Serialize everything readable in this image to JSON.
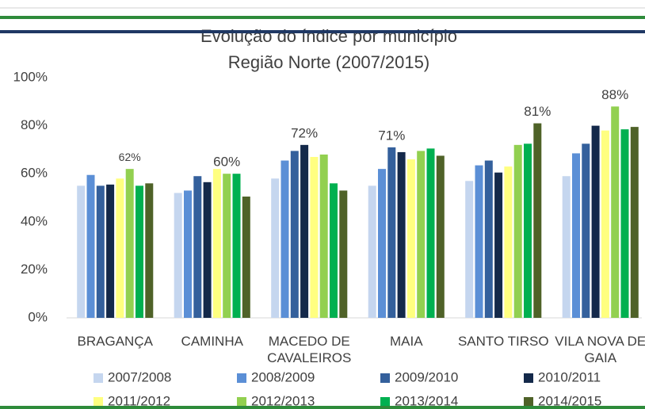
{
  "chart_data": {
    "type": "bar",
    "title": "Evolução do índice por município",
    "subtitle": "Região Norte (2007/2015)",
    "categories": [
      "BRAGANÇA",
      "CAMINHA",
      "MACEDO DE CAVALEIROS",
      "MAIA",
      "SANTO TIRSO",
      "VILA NOVA DE GAIA"
    ],
    "series": [
      {
        "name": "2007/2008",
        "color": "#c5d6ef",
        "values": [
          55,
          52,
          58,
          55,
          57,
          59
        ]
      },
      {
        "name": "2008/2009",
        "color": "#5b8fd6",
        "values": [
          59.5,
          53,
          65.5,
          62,
          63.5,
          68.5
        ]
      },
      {
        "name": "2009/2010",
        "color": "#34609c",
        "values": [
          55,
          59,
          69.5,
          71,
          65.5,
          72.5
        ],
        "value_labels": [
          null,
          null,
          null,
          "71%",
          null,
          null
        ]
      },
      {
        "name": "2010/2011",
        "color": "#14294a",
        "values": [
          55.5,
          56.5,
          72,
          69,
          60.5,
          80
        ],
        "value_labels": [
          null,
          null,
          "72%",
          null,
          null,
          null
        ]
      },
      {
        "name": "2011/2012",
        "color": "#ffff80",
        "values": [
          58,
          62,
          67,
          66,
          63,
          78
        ]
      },
      {
        "name": "2012/2013",
        "color": "#92d050",
        "values": [
          62,
          60,
          68,
          69.5,
          72,
          88
        ],
        "value_labels": [
          "62%",
          "60%",
          null,
          null,
          null,
          "88%"
        ]
      },
      {
        "name": "2013/2014",
        "color": "#00b050",
        "values": [
          55,
          60,
          56,
          70.5,
          72.5,
          78.5
        ]
      },
      {
        "name": "2014/2015",
        "color": "#4f6228",
        "values": [
          56,
          50.5,
          53,
          67.5,
          81,
          79.5
        ],
        "value_labels": [
          null,
          null,
          null,
          null,
          "81%",
          null
        ]
      }
    ],
    "ylim": [
      0,
      100
    ],
    "yticks": [
      {
        "value": 0,
        "label": "0%"
      },
      {
        "value": 20,
        "label": "20%"
      },
      {
        "value": 40,
        "label": "40%"
      },
      {
        "value": 60,
        "label": "60%"
      },
      {
        "value": 80,
        "label": "80%"
      },
      {
        "value": 100,
        "label": "100%"
      }
    ],
    "grid": false
  }
}
